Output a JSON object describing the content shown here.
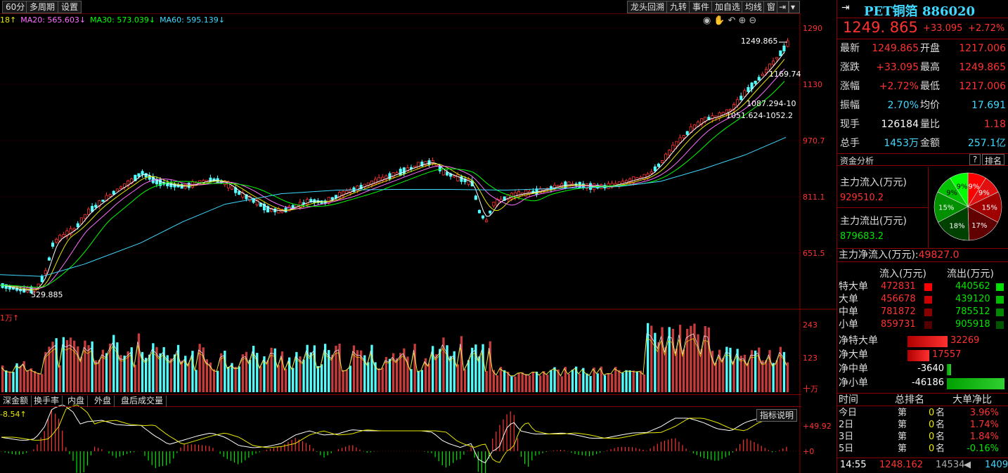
{
  "toolbar": {
    "left_buttons": [
      "60分",
      "多周期",
      "设置"
    ],
    "right_buttons": [
      "龙头回溯",
      "九转",
      "事件",
      "加自选",
      "均线",
      "窗"
    ]
  },
  "ma_line": {
    "ma10_tail": "18↑",
    "ma20": "MA20: 565.603↓",
    "ma30": "MA30: 573.039↓",
    "ma60": "MA60: 595.139↓"
  },
  "price_axis": [
    "1290",
    "1130",
    "970.7",
    "811.1",
    "651.5"
  ],
  "annotations": {
    "high_mark": "1249.865",
    "low_mark": "529.885",
    "ma_label_1": "1169.74",
    "ma_label_2": "1087.294-10",
    "ma_label_3": "1051.624-1052.2"
  },
  "volume": {
    "unit_label": "1万↑",
    "axis": [
      "243",
      "123"
    ],
    "axis_unit": "十万"
  },
  "sub_tabs": [
    "深金额",
    "换手率",
    "内盘",
    "外盘",
    "盘后成交量"
  ],
  "indicator": {
    "value_label": "-8.54↑",
    "axis_top": "+49.92",
    "axis_zero": "+0",
    "explain_button": "指标说明"
  },
  "header": {
    "name": "PET铜箔",
    "code": "886020",
    "price": "1249. 865",
    "change": "+33.095",
    "change_pct": "+2.72%"
  },
  "quote": [
    {
      "l1": "最新",
      "v1": "1249.865",
      "c1": "red",
      "l2": "开盘",
      "v2": "1217.006",
      "c2": "red"
    },
    {
      "l1": "涨跌",
      "v1": "+33.095",
      "c1": "red",
      "l2": "最高",
      "v2": "1249.865",
      "c2": "red"
    },
    {
      "l1": "涨幅",
      "v1": "+2.72%",
      "c1": "red",
      "l2": "最低",
      "v2": "1217.006",
      "c2": "red"
    },
    {
      "l1": "振幅",
      "v1": "2.70%",
      "c1": "cyan",
      "l2": "均价",
      "v2": "17.691",
      "c2": "cyan"
    },
    {
      "l1": "现手",
      "v1": "126184",
      "c1": "white",
      "l2": "量比",
      "v2": "1.18",
      "c2": "red"
    },
    {
      "l1": "总手",
      "v1": "1453万",
      "c1": "cyan",
      "l2": "金额",
      "v2": "257.1亿",
      "c2": "cyan"
    }
  ],
  "fund": {
    "title": "资金分析",
    "help": "?",
    "rank": "排名",
    "inflow_label": "主力流入(万元)",
    "inflow_value": "929510.2",
    "outflow_label": "主力流出(万元)",
    "outflow_value": "879683.2",
    "net_label": "主力净流入(万元):",
    "net_value": "49827.0",
    "pie": [
      {
        "label": "9%",
        "pct": 9,
        "color": "#ff0000"
      },
      {
        "label": "9%",
        "pct": 9,
        "color": "#e01010"
      },
      {
        "label": "15%",
        "pct": 15,
        "color": "#a00000"
      },
      {
        "label": "17%",
        "pct": 17,
        "color": "#600000"
      },
      {
        "label": "18%",
        "pct": 18,
        "color": "#004000"
      },
      {
        "label": "15%",
        "pct": 15,
        "color": "#009000"
      },
      {
        "label": "9%",
        "pct": 9,
        "color": "#00c000"
      },
      {
        "label": "9%",
        "pct": 9,
        "color": "#00ff00"
      }
    ]
  },
  "flow_table": {
    "head_in": "流入(万元)",
    "head_out": "流出(万元)",
    "rows": [
      {
        "label": "特大单",
        "in": "472831",
        "out": "440562",
        "in_color": "#ff0000",
        "out_color": "#00dd00"
      },
      {
        "label": "大单",
        "in": "456678",
        "out": "439120",
        "in_color": "#cc0000",
        "out_color": "#00bb00"
      },
      {
        "label": "中单",
        "in": "781872",
        "out": "785512",
        "in_color": "#880000",
        "out_color": "#008800"
      },
      {
        "label": "小单",
        "in": "859731",
        "out": "905918",
        "in_color": "#550000",
        "out_color": "#005500"
      }
    ]
  },
  "net_table": {
    "rows": [
      {
        "label": "净特大单",
        "value": "32269",
        "amount": 32269,
        "color": "red"
      },
      {
        "label": "净大单",
        "value": "17557",
        "amount": 17557,
        "color": "red"
      },
      {
        "label": "净中单",
        "value": "-3640",
        "amount": -3640,
        "color": "white"
      },
      {
        "label": "净小单",
        "value": "-46186",
        "amount": -46186,
        "color": "white"
      }
    ]
  },
  "rank_table": {
    "heads": [
      "时间",
      "总排名",
      "大单净比"
    ],
    "rows": [
      {
        "t": "今日",
        "d": "第",
        "n": "0",
        "u": "名",
        "p": "3.96%",
        "c": "red"
      },
      {
        "t": "2日",
        "d": "第",
        "n": "0",
        "u": "名",
        "p": "1.74%",
        "c": "red"
      },
      {
        "t": "3日",
        "d": "第",
        "n": "0",
        "u": "名",
        "p": "1.84%",
        "c": "red"
      },
      {
        "t": "5日",
        "d": "第",
        "n": "0",
        "u": "名",
        "p": "-0.16%",
        "c": "green"
      }
    ]
  },
  "status": {
    "time": "14:55",
    "price": "1248.162",
    "volume": "14534",
    "hand": "1409"
  }
}
